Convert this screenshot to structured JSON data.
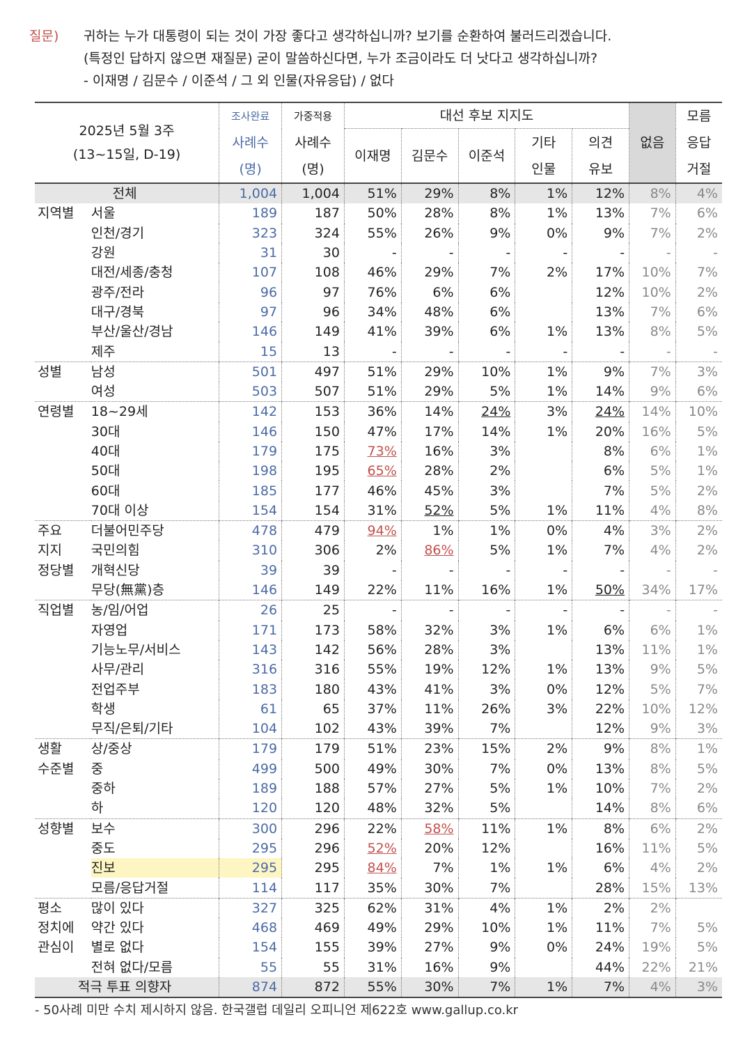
{
  "question": {
    "label": "질문)",
    "lines": [
      "귀하는 누가 대통령이 되는 것이 가장 좋다고 생각하십니까? 보기를 순환하여 불러드리겠습니다.",
      "(특정인 답하지 않으면 재질문) 굳이 말씀하신다면, 누가 조금이라도 더 낫다고 생각하십니까?",
      "- 이재명 / 김문수 / 이준석 / 그 외 인물(자유응답) / 없다"
    ]
  },
  "header": {
    "survey_title": "2025년 5월 3주",
    "survey_sub": "(13~15일, D-19)",
    "col_completed_top": "조사완료",
    "col_completed": "사례수",
    "col_completed_unit": "(명)",
    "col_weighted_top": "가중적용",
    "col_weighted": "사례수",
    "col_weighted_unit": "(명)",
    "group_label": "대선 후보 지지도",
    "cand1": "이재명",
    "cand2": "김문수",
    "cand3": "이준석",
    "other_1": "기타",
    "other_2": "인물",
    "undecided_1": "의견",
    "undecided_2": "유보",
    "none": "없음",
    "dk_1": "모름",
    "dk_2": "응답",
    "dk_3": "거절"
  },
  "rows": [
    {
      "g": "",
      "s": "전체",
      "v": [
        "1,004",
        "1,004",
        "51%",
        "29%",
        "8%",
        "1%",
        "12%",
        "8%",
        "4%"
      ],
      "total": true
    },
    {
      "g": "지역별",
      "s": "서울",
      "v": [
        "189",
        "187",
        "50%",
        "28%",
        "8%",
        "1%",
        "13%",
        "7%",
        "6%"
      ]
    },
    {
      "g": "",
      "s": "인천/경기",
      "v": [
        "323",
        "324",
        "55%",
        "26%",
        "9%",
        "0%",
        "9%",
        "7%",
        "2%"
      ]
    },
    {
      "g": "",
      "s": "강원",
      "v": [
        "31",
        "30",
        "-",
        "-",
        "-",
        "-",
        "-",
        "-",
        "-"
      ]
    },
    {
      "g": "",
      "s": "대전/세종/충청",
      "v": [
        "107",
        "108",
        "46%",
        "29%",
        "7%",
        "2%",
        "17%",
        "10%",
        "7%"
      ]
    },
    {
      "g": "",
      "s": "광주/전라",
      "v": [
        "96",
        "97",
        "76%",
        "6%",
        "6%",
        "",
        "12%",
        "10%",
        "2%"
      ]
    },
    {
      "g": "",
      "s": "대구/경북",
      "v": [
        "97",
        "96",
        "34%",
        "48%",
        "6%",
        "",
        "13%",
        "7%",
        "6%"
      ]
    },
    {
      "g": "",
      "s": "부산/울산/경남",
      "v": [
        "146",
        "149",
        "41%",
        "39%",
        "6%",
        "1%",
        "13%",
        "8%",
        "5%"
      ]
    },
    {
      "g": "",
      "s": "제주",
      "v": [
        "15",
        "13",
        "-",
        "-",
        "-",
        "-",
        "-",
        "-",
        "-"
      ]
    },
    {
      "g": "성별",
      "s": "남성",
      "v": [
        "501",
        "497",
        "51%",
        "29%",
        "10%",
        "1%",
        "9%",
        "7%",
        "3%"
      ],
      "sep": true
    },
    {
      "g": "",
      "s": "여성",
      "v": [
        "503",
        "507",
        "51%",
        "29%",
        "5%",
        "1%",
        "14%",
        "9%",
        "6%"
      ]
    },
    {
      "g": "연령별",
      "s": "18~29세",
      "v": [
        "142",
        "153",
        "36%",
        "14%",
        "24%",
        "3%",
        "24%",
        "14%",
        "10%"
      ],
      "sep": true,
      "u": {
        "4": "b",
        "6": "b"
      }
    },
    {
      "g": "",
      "s": "30대",
      "v": [
        "146",
        "150",
        "47%",
        "17%",
        "14%",
        "1%",
        "20%",
        "16%",
        "5%"
      ]
    },
    {
      "g": "",
      "s": "40대",
      "v": [
        "179",
        "175",
        "73%",
        "16%",
        "3%",
        "",
        "8%",
        "6%",
        "1%"
      ],
      "u": {
        "2": "r"
      }
    },
    {
      "g": "",
      "s": "50대",
      "v": [
        "198",
        "195",
        "65%",
        "28%",
        "2%",
        "",
        "6%",
        "5%",
        "1%"
      ],
      "u": {
        "2": "r"
      }
    },
    {
      "g": "",
      "s": "60대",
      "v": [
        "185",
        "177",
        "46%",
        "45%",
        "3%",
        "",
        "7%",
        "5%",
        "2%"
      ]
    },
    {
      "g": "",
      "s": "70대 이상",
      "v": [
        "154",
        "154",
        "31%",
        "52%",
        "5%",
        "1%",
        "11%",
        "4%",
        "8%"
      ],
      "u": {
        "3": "b"
      }
    },
    {
      "g": "주요",
      "s": "더불어민주당",
      "v": [
        "478",
        "479",
        "94%",
        "1%",
        "1%",
        "0%",
        "4%",
        "3%",
        "2%"
      ],
      "sep": true,
      "u": {
        "2": "r"
      }
    },
    {
      "g": "지지",
      "s": "국민의힘",
      "v": [
        "310",
        "306",
        "2%",
        "86%",
        "5%",
        "1%",
        "7%",
        "4%",
        "2%"
      ],
      "u": {
        "3": "r"
      }
    },
    {
      "g": "정당별",
      "s": "개혁신당",
      "v": [
        "39",
        "39",
        "-",
        "-",
        "-",
        "-",
        "-",
        "-",
        "-"
      ]
    },
    {
      "g": "",
      "s": "무당(無黨)층",
      "v": [
        "146",
        "149",
        "22%",
        "11%",
        "16%",
        "1%",
        "50%",
        "34%",
        "17%"
      ],
      "u": {
        "6": "b"
      }
    },
    {
      "g": "직업별",
      "s": "농/임/어업",
      "v": [
        "26",
        "25",
        "-",
        "-",
        "-",
        "-",
        "-",
        "-",
        "-"
      ],
      "sep": true
    },
    {
      "g": "",
      "s": "자영업",
      "v": [
        "171",
        "173",
        "58%",
        "32%",
        "3%",
        "1%",
        "6%",
        "6%",
        "1%"
      ]
    },
    {
      "g": "",
      "s": "기능노무/서비스",
      "v": [
        "143",
        "142",
        "56%",
        "28%",
        "3%",
        "",
        "13%",
        "11%",
        "1%"
      ]
    },
    {
      "g": "",
      "s": "사무/관리",
      "v": [
        "316",
        "316",
        "55%",
        "19%",
        "12%",
        "1%",
        "13%",
        "9%",
        "5%"
      ]
    },
    {
      "g": "",
      "s": "전업주부",
      "v": [
        "183",
        "180",
        "43%",
        "41%",
        "3%",
        "0%",
        "12%",
        "5%",
        "7%"
      ]
    },
    {
      "g": "",
      "s": "학생",
      "v": [
        "61",
        "65",
        "37%",
        "11%",
        "26%",
        "3%",
        "22%",
        "10%",
        "12%"
      ]
    },
    {
      "g": "",
      "s": "무직/은퇴/기타",
      "v": [
        "104",
        "102",
        "43%",
        "39%",
        "7%",
        "",
        "12%",
        "9%",
        "3%"
      ]
    },
    {
      "g": "생활",
      "s": "상/중상",
      "v": [
        "179",
        "179",
        "51%",
        "23%",
        "15%",
        "2%",
        "9%",
        "8%",
        "1%"
      ],
      "sep": true
    },
    {
      "g": "수준별",
      "s": "중",
      "v": [
        "499",
        "500",
        "49%",
        "30%",
        "7%",
        "0%",
        "13%",
        "8%",
        "5%"
      ]
    },
    {
      "g": "",
      "s": "중하",
      "v": [
        "189",
        "188",
        "57%",
        "27%",
        "5%",
        "1%",
        "10%",
        "7%",
        "2%"
      ]
    },
    {
      "g": "",
      "s": "하",
      "v": [
        "120",
        "120",
        "48%",
        "32%",
        "5%",
        "",
        "14%",
        "8%",
        "6%"
      ]
    },
    {
      "g": "성향별",
      "s": "보수",
      "v": [
        "300",
        "296",
        "22%",
        "58%",
        "11%",
        "1%",
        "8%",
        "6%",
        "2%"
      ],
      "sep": true,
      "u": {
        "3": "r"
      }
    },
    {
      "g": "",
      "s": "중도",
      "v": [
        "295",
        "296",
        "52%",
        "20%",
        "12%",
        "",
        "16%",
        "11%",
        "5%"
      ],
      "u": {
        "2": "r"
      }
    },
    {
      "g": "",
      "s": "진보",
      "v": [
        "295",
        "295",
        "84%",
        "7%",
        "1%",
        "1%",
        "6%",
        "4%",
        "2%"
      ],
      "u": {
        "2": "r"
      },
      "hl": true
    },
    {
      "g": "",
      "s": "모름/응답거절",
      "v": [
        "114",
        "117",
        "35%",
        "30%",
        "7%",
        "",
        "28%",
        "15%",
        "13%"
      ]
    },
    {
      "g": "평소",
      "s": "많이 있다",
      "v": [
        "327",
        "325",
        "62%",
        "31%",
        "4%",
        "1%",
        "2%",
        "2%",
        ""
      ],
      "sep": true
    },
    {
      "g": "정치에",
      "s": "약간 있다",
      "v": [
        "468",
        "469",
        "49%",
        "29%",
        "10%",
        "1%",
        "11%",
        "7%",
        "5%"
      ]
    },
    {
      "g": "관심이",
      "s": "별로 없다",
      "v": [
        "154",
        "155",
        "39%",
        "27%",
        "9%",
        "0%",
        "24%",
        "19%",
        "5%"
      ]
    },
    {
      "g": "",
      "s": "전혀 없다/모름",
      "v": [
        "55",
        "55",
        "31%",
        "16%",
        "9%",
        "",
        "44%",
        "22%",
        "21%"
      ]
    },
    {
      "g": "",
      "s": "적극 투표 의향자",
      "v": [
        "874",
        "872",
        "55%",
        "30%",
        "7%",
        "1%",
        "7%",
        "4%",
        "3%"
      ],
      "total": true,
      "final": true
    }
  ],
  "footnote": "- 50사례 미만 수치 제시하지 않음. 한국갤럽 데일리 오피니언 제622호 www.gallup.co.kr"
}
